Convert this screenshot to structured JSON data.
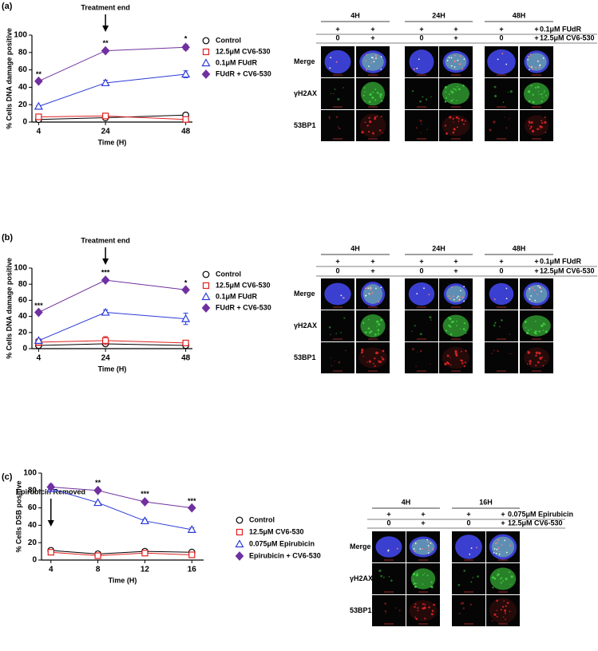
{
  "chart_data": [
    {
      "type": "line",
      "panel_label": "(a)",
      "annotation": "Treatment end",
      "annotation_x": 24,
      "ylabel": "% Cells DNA damage positive",
      "xlabel": "Time (H)",
      "x": [
        4,
        24,
        48
      ],
      "xlim": [
        2,
        50
      ],
      "xticks": [
        4,
        24,
        48
      ],
      "ylim": [
        0,
        100
      ],
      "yticks": [
        0,
        20,
        40,
        60,
        80,
        100
      ],
      "significance": [
        "**",
        "**",
        "*"
      ],
      "series": [
        {
          "name": "Control",
          "color": "#000000",
          "marker": "circle",
          "values": [
            3,
            5,
            8
          ],
          "errors": [
            1,
            1,
            1
          ]
        },
        {
          "name": "12.5μM CV6-530",
          "color": "#e02020",
          "marker": "square",
          "values": [
            6,
            7,
            3
          ],
          "errors": [
            1,
            1,
            1
          ]
        },
        {
          "name": "0.1μM FUdR",
          "color": "#2b3bd8",
          "marker": "triangle",
          "values": [
            18,
            45,
            55
          ],
          "errors": [
            1,
            3,
            4
          ]
        },
        {
          "name": "FUdR + CV6-530",
          "color": "#7030a0",
          "marker": "diamond",
          "values": [
            47,
            82,
            86
          ],
          "errors": [
            1,
            2,
            3
          ]
        }
      ]
    },
    {
      "type": "line",
      "panel_label": "(b)",
      "annotation": "Treatment end",
      "annotation_x": 24,
      "ylabel": "% Cells DNA damage positive",
      "xlabel": "Time (H)",
      "x": [
        4,
        24,
        48
      ],
      "xlim": [
        2,
        50
      ],
      "xticks": [
        4,
        24,
        48
      ],
      "ylim": [
        0,
        100
      ],
      "yticks": [
        0,
        20,
        40,
        60,
        80,
        100
      ],
      "significance": [
        "***",
        "***",
        "*"
      ],
      "series": [
        {
          "name": "Control",
          "color": "#000000",
          "marker": "circle",
          "values": [
            4,
            6,
            4
          ],
          "errors": [
            1,
            2,
            1
          ]
        },
        {
          "name": "12.5μM CV6-530",
          "color": "#e02020",
          "marker": "square",
          "values": [
            8,
            10,
            7
          ],
          "errors": [
            4,
            5,
            1
          ]
        },
        {
          "name": "0.1μM FUdR",
          "color": "#2b3bd8",
          "marker": "triangle",
          "values": [
            10,
            45,
            37
          ],
          "errors": [
            2,
            3,
            7
          ]
        },
        {
          "name": "FUdR + CV6-530",
          "color": "#7030a0",
          "marker": "diamond",
          "values": [
            45,
            85,
            73
          ],
          "errors": [
            1,
            2,
            1
          ]
        }
      ]
    },
    {
      "type": "line",
      "panel_label": "(c)",
      "annotation": "Epirubicin Removed",
      "annotation_x": 4,
      "ylabel": "% Cells DSB positive",
      "xlabel": "Time (H)",
      "x": [
        4,
        8,
        12,
        16
      ],
      "xlim": [
        3.2,
        17
      ],
      "xticks": [
        4,
        8,
        12,
        16
      ],
      "ylim": [
        0,
        100
      ],
      "yticks": [
        0,
        20,
        40,
        60,
        80,
        100
      ],
      "significance": [
        null,
        "**",
        "***",
        "***"
      ],
      "series": [
        {
          "name": "Control",
          "color": "#000000",
          "marker": "circle",
          "values": [
            11,
            7,
            10,
            9
          ],
          "errors": [
            1,
            1,
            1,
            1
          ]
        },
        {
          "name": "12.5μM CV6-530",
          "color": "#e02020",
          "marker": "square",
          "values": [
            9,
            5,
            8,
            6
          ],
          "errors": [
            1,
            1,
            1,
            1
          ]
        },
        {
          "name": "0.075μM Epirubicin",
          "color": "#2b3bd8",
          "marker": "triangle",
          "values": [
            82,
            66,
            45,
            35
          ],
          "errors": [
            2,
            1,
            2,
            2
          ]
        },
        {
          "name": "Epirubicin + CV6-530",
          "color": "#7030a0",
          "marker": "diamond",
          "values": [
            84,
            80,
            67,
            60
          ],
          "errors": [
            3,
            2,
            2,
            1
          ]
        }
      ]
    }
  ],
  "image_panels": [
    {
      "time_labels": [
        "4H",
        "24H",
        "48H"
      ],
      "drug_marks": [
        "+",
        "+",
        "+",
        "+",
        "+",
        "+"
      ],
      "drug_label": "0.1μM FUdR",
      "inhibitor_marks": [
        "0",
        "+",
        "0",
        "+",
        "0",
        "+"
      ],
      "inhibitor_label": "12.5μM CV6-530",
      "rows": [
        "Merge",
        "γH2AX",
        "53BP1"
      ]
    },
    {
      "time_labels": [
        "4H",
        "24H",
        "48H"
      ],
      "drug_marks": [
        "+",
        "+",
        "+",
        "+",
        "+",
        "+"
      ],
      "drug_label": "0.1μM FUdR",
      "inhibitor_marks": [
        "0",
        "+",
        "0",
        "+",
        "0",
        "+"
      ],
      "inhibitor_label": "12.5μM CV6-530",
      "rows": [
        "Merge",
        "γH2AX",
        "53BP1"
      ]
    },
    {
      "time_labels": [
        "4H",
        "16H"
      ],
      "drug_marks": [
        "+",
        "+",
        "+",
        "+"
      ],
      "drug_label": "0.075μM Epirubicin",
      "inhibitor_marks": [
        "0",
        "+",
        "0",
        "+"
      ],
      "inhibitor_label": "12.5μM CV6-530",
      "rows": [
        "Merge",
        "γH2AX",
        "53BP1"
      ]
    }
  ]
}
